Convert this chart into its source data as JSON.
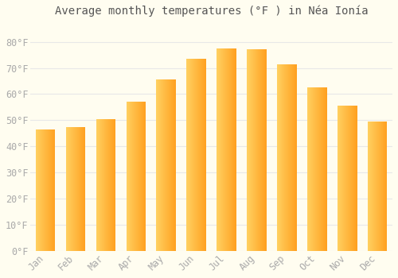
{
  "title": "Average monthly temperatures (°F ) in Néa Ionía",
  "months": [
    "Jan",
    "Feb",
    "Mar",
    "Apr",
    "May",
    "Jun",
    "Jul",
    "Aug",
    "Sep",
    "Oct",
    "Nov",
    "Dec"
  ],
  "values": [
    46.5,
    47.5,
    50.5,
    57.0,
    65.5,
    73.5,
    77.5,
    77.0,
    71.5,
    62.5,
    55.5,
    49.5
  ],
  "bar_color_left": "#FFD060",
  "bar_color_right": "#FFA020",
  "background_color": "#FFFDF0",
  "grid_color": "#E8E8E8",
  "tick_label_color": "#AAAAAA",
  "title_color": "#555555",
  "ylim": [
    0,
    87
  ],
  "yticks": [
    0,
    10,
    20,
    30,
    40,
    50,
    60,
    70,
    80
  ],
  "title_fontsize": 10,
  "tick_fontsize": 8.5
}
